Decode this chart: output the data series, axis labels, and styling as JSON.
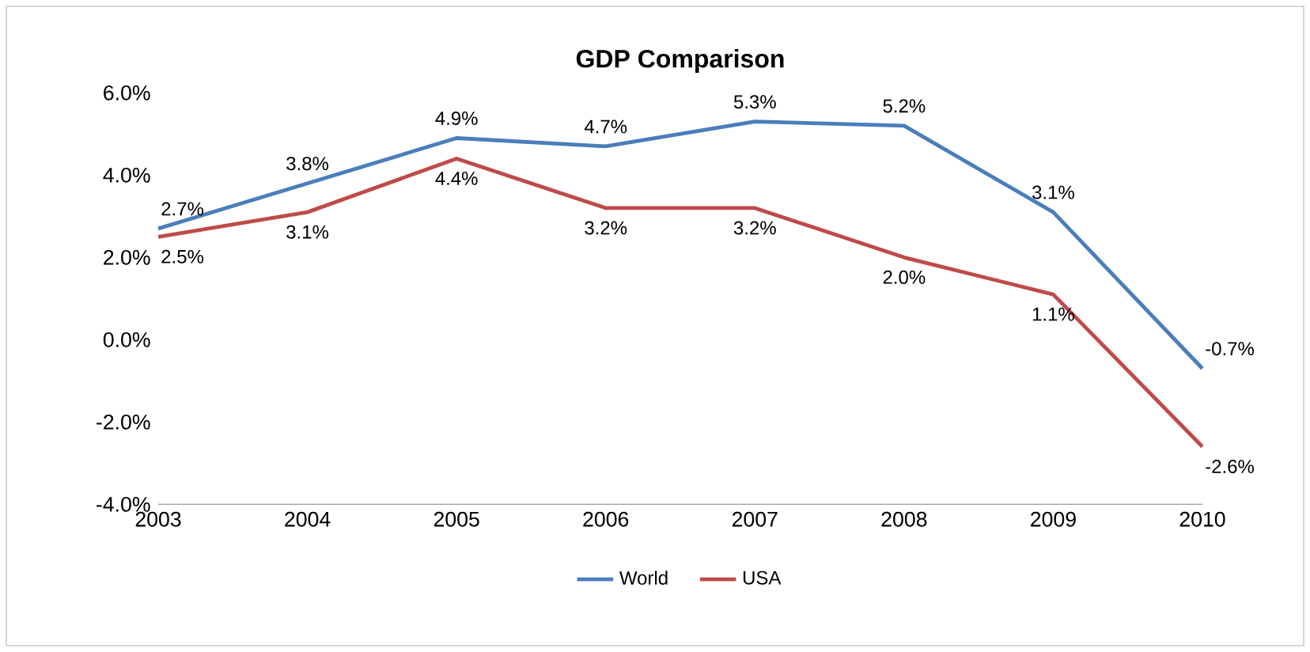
{
  "chart_data": {
    "type": "line",
    "title": "GDP Comparison",
    "x": [
      2003,
      2004,
      2005,
      2006,
      2007,
      2008,
      2009,
      2010
    ],
    "xlim": [
      2003,
      2010
    ],
    "xticks": [
      2003,
      2004,
      2005,
      2006,
      2007,
      2008,
      2009,
      2010
    ],
    "ylim": [
      -4,
      6
    ],
    "yticks": [
      {
        "value": -4,
        "label": "-4.0%"
      },
      {
        "value": -2,
        "label": "-2.0%"
      },
      {
        "value": 0,
        "label": "0.0%"
      },
      {
        "value": 2,
        "label": "2.0%"
      },
      {
        "value": 4,
        "label": "4.0%"
      },
      {
        "value": 6,
        "label": "6.0%"
      }
    ],
    "series": [
      {
        "name": "World",
        "color": "#4a7ebb",
        "values": [
          2.7,
          3.8,
          4.9,
          4.7,
          5.3,
          5.2,
          3.1,
          -0.7
        ],
        "value_labels": [
          "2.7%",
          "3.8%",
          "4.9%",
          "4.7%",
          "5.3%",
          "5.2%",
          "3.1%",
          "-0.7%"
        ]
      },
      {
        "name": "USA",
        "color": "#be4b48",
        "values": [
          2.5,
          3.1,
          4.4,
          3.2,
          3.2,
          2.0,
          1.1,
          -2.6
        ],
        "value_labels": [
          "2.5%",
          "3.1%",
          "4.4%",
          "3.2%",
          "3.2%",
          "2.0%",
          "1.1%",
          "-2.6%"
        ]
      }
    ],
    "legend": "bottom",
    "grid": false,
    "marker": "none",
    "line_style": "solid"
  }
}
